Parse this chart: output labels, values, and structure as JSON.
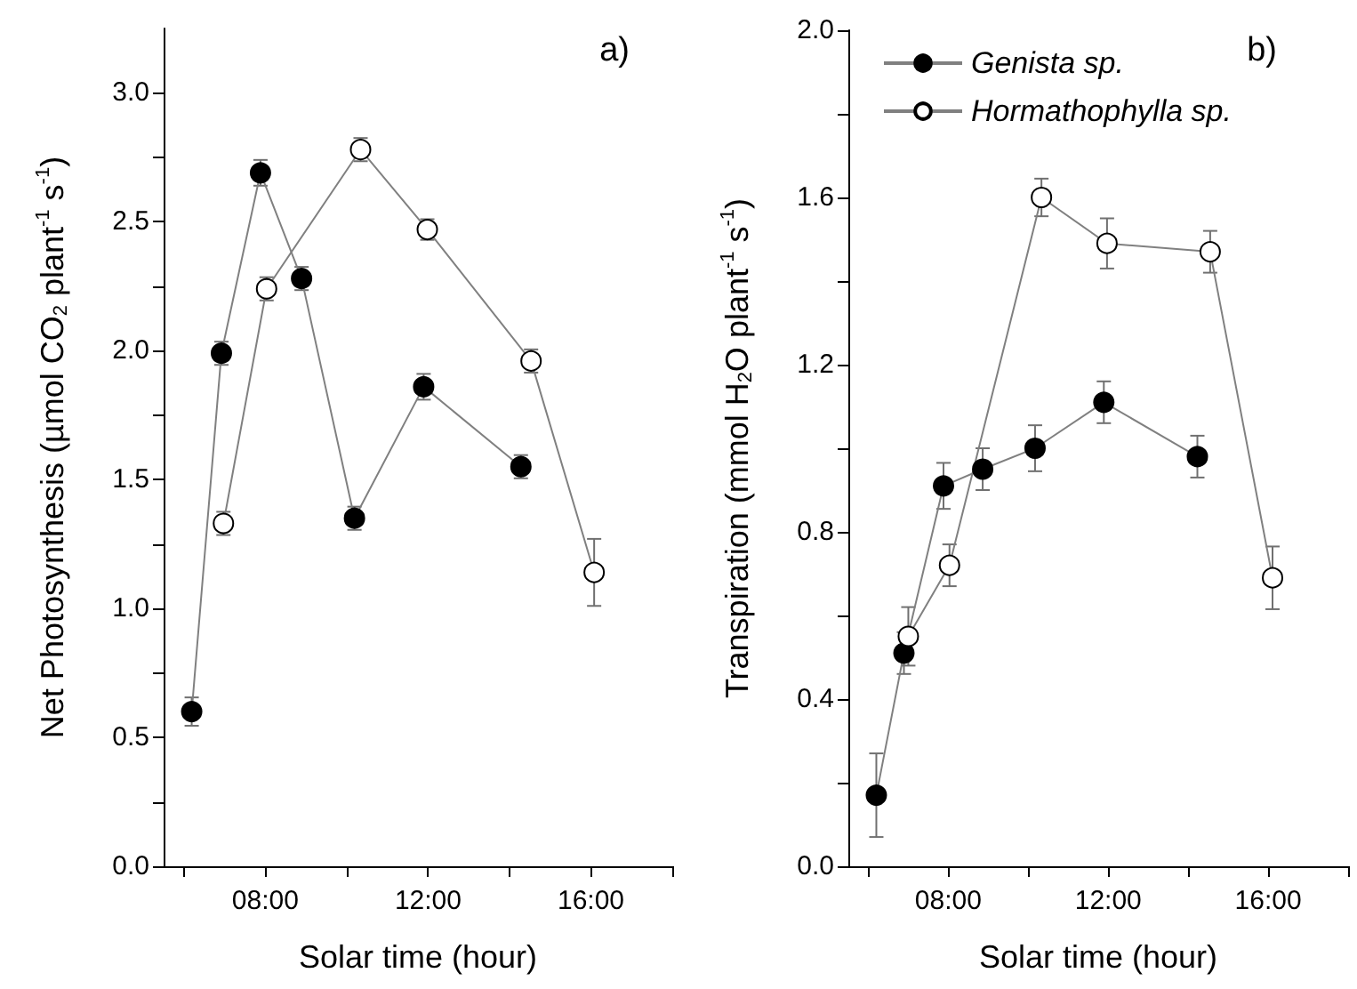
{
  "chart_data": [
    {
      "type": "line",
      "title": "a)",
      "xlabel": "Solar time (hour)",
      "ylabel": "Net Photosynthesis (µmol CO$_{2}$ plant$^{-1}$ s$^{-1}$)",
      "marker": "circle",
      "line_style": "solid",
      "grid": false,
      "xlim": [
        5.5,
        18
      ],
      "xticks": [
        {
          "value": 6,
          "label": null
        },
        {
          "value": 8,
          "label": "08:00"
        },
        {
          "value": 10,
          "label": null
        },
        {
          "value": 12,
          "label": "12:00"
        },
        {
          "value": 14,
          "label": null
        },
        {
          "value": 16,
          "label": "16:00"
        },
        {
          "value": 18,
          "label": null
        }
      ],
      "ylim": [
        0,
        3.25
      ],
      "yticks": [
        {
          "value": 0,
          "label": "0.0"
        },
        {
          "value": 0.25,
          "label": null
        },
        0.5,
        {
          "value": 0.75,
          "label": null
        },
        {
          "value": 1,
          "label": "1.0"
        },
        {
          "value": 1.25,
          "label": null
        },
        1.5,
        {
          "value": 1.75,
          "label": null
        },
        {
          "value": 2,
          "label": "2.0"
        },
        {
          "value": 2.25,
          "label": null
        },
        2.5,
        {
          "value": 2.75,
          "label": null
        },
        {
          "value": 3,
          "label": "3.0"
        }
      ],
      "series": [
        {
          "color": "#000000",
          "x": [
            6.19,
            6.92,
            7.88,
            8.89,
            10.19,
            11.89,
            14.28
          ],
          "values": [
            0.6,
            1.99,
            2.69,
            2.28,
            1.35,
            1.86,
            1.55
          ],
          "errors": [
            0.055,
            0.045,
            0.05,
            0.045,
            0.045,
            0.05,
            0.045
          ]
        },
        {
          "color": "#ffffff",
          "x": [
            6.97,
            8.03,
            10.34,
            11.98,
            14.53,
            16.08
          ],
          "values": [
            1.33,
            2.24,
            2.78,
            2.47,
            1.96,
            1.14
          ],
          "errors": [
            0.045,
            0.045,
            0.045,
            0.04,
            0.045,
            0.13
          ]
        }
      ]
    },
    {
      "type": "line",
      "title": "b)",
      "xlabel": "Solar time (hour)",
      "ylabel": "Transpiration (mmol H$_{2}$O plant$^{-1}$ s$^{-1}$)",
      "marker": "circle",
      "line_style": "solid",
      "grid": false,
      "legend": "top left",
      "xlim": [
        5.5,
        18
      ],
      "xticks": [
        {
          "value": 6,
          "label": null
        },
        {
          "value": 8,
          "label": "08:00"
        },
        {
          "value": 10,
          "label": null
        },
        {
          "value": 12,
          "label": "12:00"
        },
        {
          "value": 14,
          "label": null
        },
        {
          "value": 16,
          "label": "16:00"
        },
        {
          "value": 18,
          "label": null
        }
      ],
      "ylim": [
        0,
        2.0
      ],
      "yticks": [
        {
          "value": 0,
          "label": "0.0"
        },
        {
          "value": 0.2,
          "label": null
        },
        0.4,
        {
          "value": 0.6,
          "label": null
        },
        0.8,
        {
          "value": 1.0,
          "label": null
        },
        1.2,
        {
          "value": 1.4,
          "label": null
        },
        1.6,
        {
          "value": 1.8,
          "label": null
        },
        {
          "value": 2,
          "label": "2.0"
        }
      ],
      "series": [
        {
          "name": "Genista sp.",
          "color": "#000000",
          "x": [
            6.2,
            6.89,
            7.88,
            8.86,
            10.17,
            11.89,
            14.23
          ],
          "values": [
            0.17,
            0.51,
            0.91,
            0.95,
            1.0,
            1.11,
            0.98
          ],
          "errors": [
            0.1,
            0.05,
            0.055,
            0.05,
            0.055,
            0.05,
            0.05
          ]
        },
        {
          "name": "Hormathophylla sp.",
          "color": "#ffffff",
          "x": [
            7.0,
            8.03,
            10.33,
            11.97,
            14.55,
            16.11
          ],
          "values": [
            0.55,
            0.72,
            1.6,
            1.49,
            1.47,
            0.69
          ],
          "errors": [
            0.07,
            0.05,
            0.045,
            0.06,
            0.05,
            0.075
          ]
        }
      ]
    }
  ]
}
